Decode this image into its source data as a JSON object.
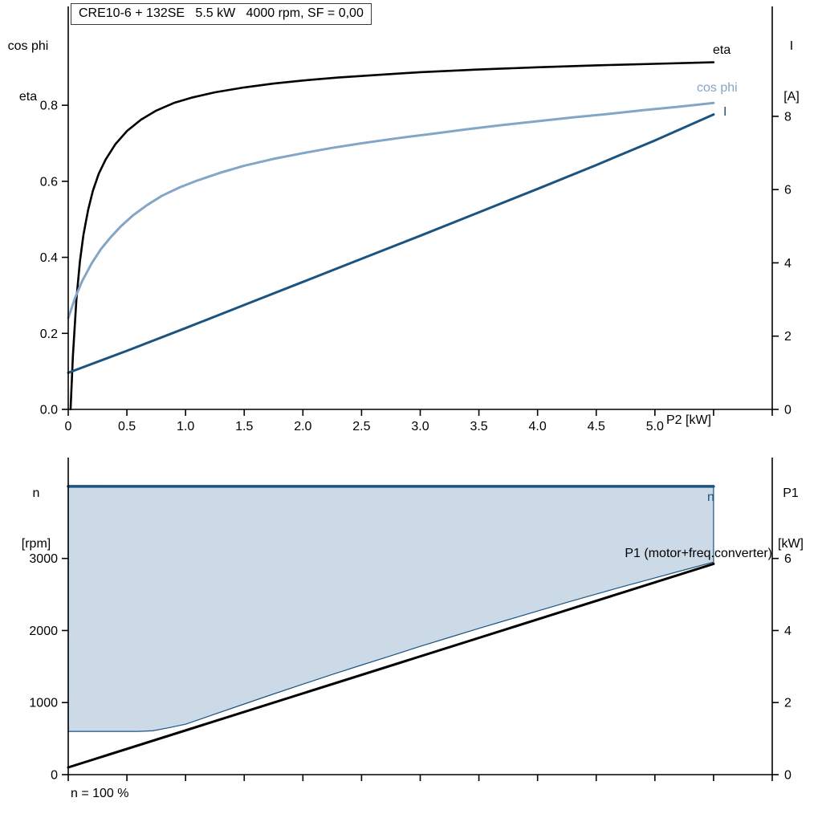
{
  "title": "CRE10-6 + 132SE   5.5 kW   4000 rpm, SF = 0,00",
  "colors": {
    "black": "#000000",
    "dark_blue": "#1b5480",
    "light_blue": "#83a5c6",
    "area_fill": "#ccd9e7"
  },
  "chart_data": [
    {
      "type": "line",
      "title": "CRE10-6 + 132SE   5.5 kW   4000 rpm, SF = 0,00",
      "x_label": "P2 [kW]",
      "x_range": [
        0,
        6.0
      ],
      "x_tick_values": [
        0,
        0.5,
        1,
        1.5,
        2,
        2.5,
        3,
        3.5,
        4,
        4.5,
        5,
        5.5,
        6
      ],
      "x_tick_labels": [
        "0",
        "0.5",
        "1.0",
        "1.5",
        "2.0",
        "2.5",
        "3.0",
        "3.5",
        "4.0",
        "4.5",
        "5.0"
      ],
      "grid": false,
      "left_axis": {
        "title1": "cos phi",
        "title2": "eta",
        "range": [
          0,
          1.06
        ],
        "tick_values": [
          0,
          0.2,
          0.4,
          0.6,
          0.8
        ],
        "tick_labels": [
          "0.0",
          "0.2",
          "0.4",
          "0.6",
          "0.8"
        ]
      },
      "right_axis": {
        "title1": "I",
        "title2": "[A]",
        "range": [
          0,
          11
        ],
        "tick_values": [
          0,
          2,
          4,
          6,
          8
        ],
        "tick_labels": [
          "0",
          "2",
          "4",
          "6",
          "8"
        ]
      },
      "series": [
        {
          "name": "eta",
          "axis": "left",
          "color": "#000000",
          "width": 2.6,
          "points": [
            [
              0.02,
              0
            ],
            [
              0.04,
              0.14
            ],
            [
              0.07,
              0.29
            ],
            [
              0.1,
              0.39
            ],
            [
              0.13,
              0.46
            ],
            [
              0.17,
              0.525
            ],
            [
              0.21,
              0.575
            ],
            [
              0.26,
              0.62
            ],
            [
              0.32,
              0.658
            ],
            [
              0.4,
              0.697
            ],
            [
              0.5,
              0.732
            ],
            [
              0.62,
              0.762
            ],
            [
              0.75,
              0.786
            ],
            [
              0.9,
              0.806
            ],
            [
              1.05,
              0.82
            ],
            [
              1.25,
              0.834
            ],
            [
              1.5,
              0.847
            ],
            [
              1.75,
              0.857
            ],
            [
              2.0,
              0.865
            ],
            [
              2.3,
              0.873
            ],
            [
              2.6,
              0.879
            ],
            [
              3.0,
              0.887
            ],
            [
              3.5,
              0.894
            ],
            [
              4.0,
              0.9
            ],
            [
              4.5,
              0.905
            ],
            [
              5.0,
              0.909
            ],
            [
              5.5,
              0.913
            ]
          ]
        },
        {
          "name": "cos phi",
          "axis": "left",
          "color": "#83a5c6",
          "width": 3,
          "points": [
            [
              0,
              0.24
            ],
            [
              0.06,
              0.295
            ],
            [
              0.12,
              0.338
            ],
            [
              0.2,
              0.384
            ],
            [
              0.28,
              0.422
            ],
            [
              0.36,
              0.452
            ],
            [
              0.45,
              0.482
            ],
            [
              0.55,
              0.51
            ],
            [
              0.67,
              0.537
            ],
            [
              0.8,
              0.562
            ],
            [
              0.95,
              0.584
            ],
            [
              1.1,
              0.602
            ],
            [
              1.3,
              0.623
            ],
            [
              1.5,
              0.641
            ],
            [
              1.75,
              0.659
            ],
            [
              2.0,
              0.674
            ],
            [
              2.25,
              0.688
            ],
            [
              2.5,
              0.7
            ],
            [
              2.8,
              0.713
            ],
            [
              3.1,
              0.725
            ],
            [
              3.4,
              0.737
            ],
            [
              3.7,
              0.748
            ],
            [
              4.0,
              0.758
            ],
            [
              4.3,
              0.768
            ],
            [
              4.6,
              0.777
            ],
            [
              4.9,
              0.787
            ],
            [
              5.2,
              0.796
            ],
            [
              5.5,
              0.806
            ]
          ]
        },
        {
          "name": "I",
          "axis": "right",
          "color": "#1b5480",
          "width": 3,
          "points": [
            [
              0,
              1.0
            ],
            [
              0.5,
              1.6
            ],
            [
              1.0,
              2.22
            ],
            [
              1.5,
              2.85
            ],
            [
              2.0,
              3.48
            ],
            [
              2.5,
              4.11
            ],
            [
              3.0,
              4.74
            ],
            [
              3.5,
              5.38
            ],
            [
              4.0,
              6.02
            ],
            [
              4.5,
              6.67
            ],
            [
              5.0,
              7.34
            ],
            [
              5.5,
              8.05
            ]
          ]
        }
      ]
    },
    {
      "type": "line",
      "x_label": "",
      "x_range": [
        0,
        6.0
      ],
      "x_tick_values": [
        0,
        0.5,
        1,
        1.5,
        2,
        2.5,
        3,
        3.5,
        4,
        4.5,
        5,
        5.5,
        6
      ],
      "x_tick_labels": [],
      "grid": false,
      "left_axis": {
        "title1": "n",
        "title2": "[rpm]",
        "range": [
          0,
          4400
        ],
        "tick_values": [
          0,
          1000,
          2000,
          3000
        ],
        "tick_labels": [
          "0",
          "1000",
          "2000",
          "3000"
        ]
      },
      "right_axis": {
        "title1": "P1",
        "title2": "[kW]",
        "range": [
          0,
          8.8
        ],
        "tick_values": [
          0,
          2,
          4,
          6
        ],
        "tick_labels": [
          "0",
          "2",
          "4",
          "6"
        ]
      },
      "area": {
        "name": "speed-operating-range",
        "axis": "left",
        "fill": "#ccd9e7",
        "edge_color": "#1b5480",
        "top_value": 4000,
        "lower_points": [
          [
            0,
            600
          ],
          [
            0.6,
            600
          ],
          [
            0.72,
            608
          ],
          [
            0.85,
            648
          ],
          [
            1.0,
            700
          ],
          [
            1.25,
            840
          ],
          [
            1.5,
            980
          ],
          [
            1.75,
            1120
          ],
          [
            2.0,
            1255
          ],
          [
            2.25,
            1390
          ],
          [
            2.5,
            1520
          ],
          [
            2.75,
            1650
          ],
          [
            3.0,
            1780
          ],
          [
            3.25,
            1905
          ],
          [
            3.5,
            2030
          ],
          [
            3.75,
            2150
          ],
          [
            4.0,
            2270
          ],
          [
            4.25,
            2390
          ],
          [
            4.5,
            2505
          ],
          [
            4.75,
            2620
          ],
          [
            5.0,
            2730
          ],
          [
            5.25,
            2840
          ],
          [
            5.5,
            2950
          ]
        ]
      },
      "series": [
        {
          "name": "n",
          "axis": "left",
          "color": "#1b5480",
          "width": 3.5,
          "points": [
            [
              0,
              4000
            ],
            [
              5.5,
              4000
            ]
          ]
        },
        {
          "name": "P1 (motor+freq.converter)",
          "axis": "right",
          "color": "#000000",
          "width": 3,
          "points": [
            [
              0,
              0.2
            ],
            [
              5.5,
              5.85
            ]
          ]
        }
      ],
      "footnote": "n = 100 %"
    }
  ]
}
